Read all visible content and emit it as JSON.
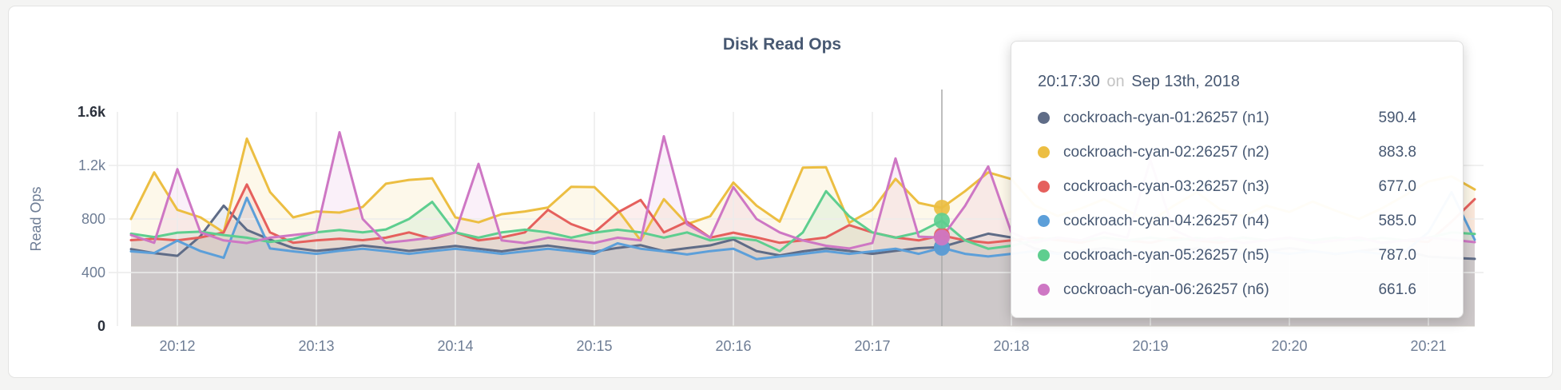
{
  "page": {
    "background": "#f4f4f3",
    "card_background": "#ffffff"
  },
  "chart_data": {
    "type": "line",
    "title": "Disk Read Ops",
    "ylabel": "Read Ops",
    "ylim": [
      0,
      1600
    ],
    "grid": true,
    "x_start_time": "20:11:40",
    "x_step_seconds": 10,
    "x_ticks": [
      "20:12",
      "20:13",
      "20:14",
      "20:15",
      "20:16",
      "20:17",
      "20:18",
      "20:19",
      "20:20",
      "20:21"
    ],
    "y_ticks": [
      {
        "label": "1.6k",
        "value": 1600,
        "bold": true,
        "gridline": false
      },
      {
        "label": "1.2k",
        "value": 1200,
        "bold": false,
        "gridline": true
      },
      {
        "label": "800",
        "value": 800,
        "bold": false,
        "gridline": true
      },
      {
        "label": "400",
        "value": 400,
        "bold": false,
        "gridline": true
      },
      {
        "label": "0",
        "value": 0,
        "bold": true,
        "gridline": false
      }
    ],
    "colors": {
      "axis_text": "#6e7d95",
      "axis_text_bold": "#2b313c",
      "title_text": "#475872",
      "gridline": "#ececeb",
      "crosshair": "#a9a9a9",
      "baseline": "#cfcbc2"
    },
    "hover": {
      "index": 35,
      "time": "20:17:30"
    },
    "series": [
      {
        "name": "cockroach-cyan-01:26257 (n1)",
        "color": "#5F6C87",
        "values": [
          575,
          545,
          525,
          672,
          900,
          718,
          646,
          583,
          562,
          578,
          602,
          583,
          561,
          580,
          599,
          578,
          558,
          582,
          601,
          578,
          556,
          584,
          604,
          560,
          582,
          603,
          648,
          560,
          528,
          558,
          580,
          561,
          540,
          562,
          582,
          590.4,
          641,
          690,
          662,
          580,
          545,
          562,
          582,
          560,
          518,
          558,
          580,
          562,
          540,
          560,
          582,
          560,
          538,
          560,
          580,
          562,
          518,
          510,
          502
        ]
      },
      {
        "name": "cockroach-cyan-02:26257 (n2)",
        "color": "#ECBE42",
        "values": [
          800,
          1148,
          868,
          812,
          700,
          1400,
          1002,
          812,
          856,
          848,
          890,
          1063,
          1092,
          1104,
          812,
          775,
          836,
          856,
          886,
          1040,
          1038,
          870,
          640,
          948,
          762,
          820,
          1072,
          900,
          780,
          1184,
          1186,
          772,
          868,
          1100,
          920,
          883.8,
          1008,
          1148,
          1098,
          902,
          822,
          878,
          948,
          862,
          782,
          898,
          1000,
          872,
          820,
          900,
          852,
          930,
          862,
          800,
          880,
          978,
          1080,
          1118,
          1020
        ]
      },
      {
        "name": "cockroach-cyan-03:26257 (n3)",
        "color": "#E5605D",
        "values": [
          642,
          652,
          640,
          662,
          700,
          1058,
          700,
          622,
          640,
          652,
          642,
          660,
          700,
          652,
          700,
          640,
          662,
          700,
          868,
          762,
          700,
          848,
          942,
          700,
          780,
          660,
          698,
          662,
          622,
          640,
          662,
          754,
          700,
          662,
          640,
          677,
          640,
          622,
          640,
          660,
          642,
          622,
          662,
          640,
          622,
          660,
          640,
          622,
          662,
          640,
          660,
          622,
          640,
          662,
          622,
          640,
          628,
          780,
          948
        ]
      },
      {
        "name": "cockroach-cyan-04:26257 (n4)",
        "color": "#5C9FD9",
        "values": [
          558,
          545,
          638,
          560,
          510,
          958,
          580,
          558,
          540,
          562,
          578,
          560,
          540,
          560,
          578,
          560,
          540,
          558,
          578,
          560,
          540,
          618,
          578,
          558,
          535,
          560,
          578,
          500,
          520,
          540,
          560,
          540,
          558,
          578,
          540,
          585,
          540,
          520,
          540,
          560,
          540,
          558,
          540,
          560,
          540,
          558,
          540,
          560,
          540,
          558,
          540,
          560,
          540,
          558,
          540,
          560,
          700,
          1000,
          645
        ]
      },
      {
        "name": "cockroach-cyan-05:26257 (n5)",
        "color": "#5ECE8F",
        "values": [
          690,
          665,
          698,
          705,
          680,
          660,
          628,
          650,
          700,
          718,
          700,
          722,
          800,
          928,
          700,
          660,
          700,
          720,
          700,
          660,
          698,
          720,
          700,
          660,
          700,
          640,
          660,
          640,
          560,
          700,
          1008,
          820,
          700,
          660,
          700,
          787,
          640,
          578,
          600,
          640,
          660,
          640,
          660,
          640,
          660,
          640,
          658,
          640,
          660,
          640,
          658,
          640,
          660,
          640,
          658,
          640,
          660,
          700,
          688
        ]
      },
      {
        "name": "cockroach-cyan-06:26257 (n6)",
        "color": "#CE77C4",
        "values": [
          680,
          622,
          1172,
          700,
          640,
          620,
          660,
          680,
          700,
          1448,
          800,
          622,
          640,
          660,
          700,
          1212,
          640,
          620,
          660,
          640,
          620,
          660,
          640,
          1418,
          760,
          660,
          1038,
          800,
          700,
          640,
          600,
          580,
          620,
          1252,
          668,
          661.6,
          898,
          1192,
          700,
          622,
          660,
          640,
          700,
          660,
          1238,
          720,
          640,
          660,
          620,
          640,
          660,
          620,
          640,
          660,
          620,
          640,
          660,
          645,
          627
        ]
      }
    ]
  },
  "tooltip": {
    "time": "20:17:30",
    "preposition": "on",
    "date": "Sep 13th, 2018",
    "rows": [
      {
        "name": "cockroach-cyan-01:26257 (n1)",
        "value": "590.4",
        "color": "#5F6C87"
      },
      {
        "name": "cockroach-cyan-02:26257 (n2)",
        "value": "883.8",
        "color": "#ECBE42"
      },
      {
        "name": "cockroach-cyan-03:26257 (n3)",
        "value": "677.0",
        "color": "#E5605D"
      },
      {
        "name": "cockroach-cyan-04:26257 (n4)",
        "value": "585.0",
        "color": "#5C9FD9"
      },
      {
        "name": "cockroach-cyan-05:26257 (n5)",
        "value": "787.0",
        "color": "#5ECE8F"
      },
      {
        "name": "cockroach-cyan-06:26257 (n6)",
        "value": "661.6",
        "color": "#CE77C4"
      }
    ]
  }
}
